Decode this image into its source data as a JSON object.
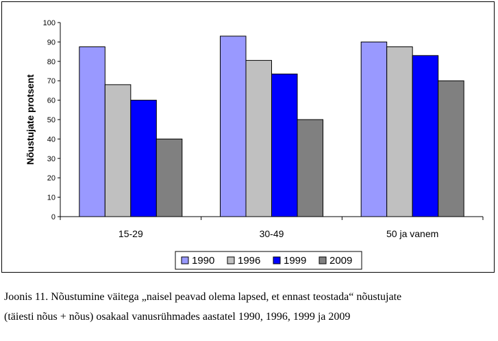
{
  "chart_data": {
    "type": "bar",
    "title": "",
    "xlabel": "",
    "ylabel": "Nõustujate protsent",
    "ylim": [
      0,
      100
    ],
    "yticks": [
      0,
      10,
      20,
      30,
      40,
      50,
      60,
      70,
      80,
      90,
      100
    ],
    "grid": false,
    "legend_position": "bottom",
    "categories": [
      "15-29",
      "30-49",
      "50 ja vanem"
    ],
    "series": [
      {
        "name": "1990",
        "color": "#9999ff",
        "values": [
          87.5,
          93,
          90
        ]
      },
      {
        "name": "1996",
        "color": "#c0c0c0",
        "values": [
          68,
          80.5,
          87.5
        ]
      },
      {
        "name": "1999",
        "color": "#0000ff",
        "values": [
          60,
          73.5,
          83
        ]
      },
      {
        "name": "2009",
        "color": "#808080",
        "values": [
          40,
          50,
          70
        ]
      }
    ]
  },
  "caption": {
    "line1": "Joonis 11. Nõustumine väitega „naisel peavad olema lapsed, et ennast teostada“ nõustujate",
    "line2": "(täiesti nõus + nõus) osakaal vanusrühmades aastatel 1990, 1996, 1999 ja 2009"
  }
}
